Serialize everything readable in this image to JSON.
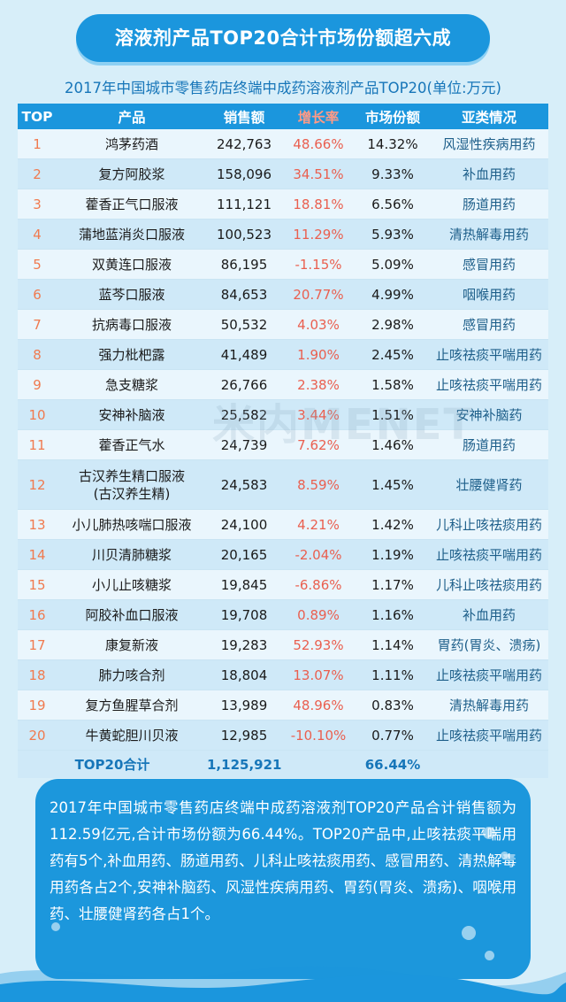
{
  "header": {
    "title": "溶液剂产品TOP20合计市场份额超六成",
    "subtitle": "2017年中国城市零售药店终端中成药溶液剂产品TOP20(单位:万元)"
  },
  "watermark": "米内MENET",
  "colors": {
    "accent": "#1b96dd",
    "negative_growth": "#ea5f4f",
    "rank": "#f07a4f"
  },
  "chart_data": {
    "type": "table",
    "columns": [
      "TOP",
      "产品",
      "销售额",
      "增长率",
      "市场份额",
      "亚类情况"
    ],
    "rows": [
      [
        "1",
        "鸿茅药酒",
        "242,763",
        "48.66%",
        "14.32%",
        "风湿性疾病用药"
      ],
      [
        "2",
        "复方阿胶浆",
        "158,096",
        "34.51%",
        "9.33%",
        "补血用药"
      ],
      [
        "3",
        "藿香正气口服液",
        "111,121",
        "18.81%",
        "6.56%",
        "肠道用药"
      ],
      [
        "4",
        "蒲地蓝消炎口服液",
        "100,523",
        "11.29%",
        "5.93%",
        "清热解毒用药"
      ],
      [
        "5",
        "双黄连口服液",
        "86,195",
        "-1.15%",
        "5.09%",
        "感冒用药"
      ],
      [
        "6",
        "蓝芩口服液",
        "84,653",
        "20.77%",
        "4.99%",
        "咽喉用药"
      ],
      [
        "7",
        "抗病毒口服液",
        "50,532",
        "4.03%",
        "2.98%",
        "感冒用药"
      ],
      [
        "8",
        "强力枇杷露",
        "41,489",
        "1.90%",
        "2.45%",
        "止咳祛痰平喘用药"
      ],
      [
        "9",
        "急支糖浆",
        "26,766",
        "2.38%",
        "1.58%",
        "止咳祛痰平喘用药"
      ],
      [
        "10",
        "安神补脑液",
        "25,582",
        "3.44%",
        "1.51%",
        "安神补脑药"
      ],
      [
        "11",
        "藿香正气水",
        "24,739",
        "7.62%",
        "1.46%",
        "肠道用药"
      ],
      [
        "12",
        "古汉养生精口服液\n(古汉养生精)",
        "24,583",
        "8.59%",
        "1.45%",
        "壮腰健肾药"
      ],
      [
        "13",
        "小儿肺热咳喘口服液",
        "24,100",
        "4.21%",
        "1.42%",
        "儿科止咳祛痰用药"
      ],
      [
        "14",
        "川贝清肺糖浆",
        "20,165",
        "-2.04%",
        "1.19%",
        "止咳祛痰平喘用药"
      ],
      [
        "15",
        "小儿止咳糖浆",
        "19,845",
        "-6.86%",
        "1.17%",
        "儿科止咳祛痰用药"
      ],
      [
        "16",
        "阿胶补血口服液",
        "19,708",
        "0.89%",
        "1.16%",
        "补血用药"
      ],
      [
        "17",
        "康复新液",
        "19,283",
        "52.93%",
        "1.14%",
        "胃药(胃炎、溃疡)"
      ],
      [
        "18",
        "肺力咳合剂",
        "18,804",
        "13.07%",
        "1.11%",
        "止咳祛痰平喘用药"
      ],
      [
        "19",
        "复方鱼腥草合剂",
        "13,989",
        "48.96%",
        "0.83%",
        "清热解毒用药"
      ],
      [
        "20",
        "牛黄蛇胆川贝液",
        "12,985",
        "-10.10%",
        "0.77%",
        "止咳祛痰平喘用药"
      ]
    ],
    "total": {
      "label": "TOP20合计",
      "sales": "1,125,921",
      "share": "66.44%"
    }
  },
  "summary": {
    "text": "2017年中国城市零售药店终端中成药溶液剂TOP20产品合计销售额为112.59亿元,合计市场份额为66.44%。TOP20产品中,止咳祛痰平喘用药有5个,补血用药、肠道用药、儿科止咳祛痰用药、感冒用药、清热解毒用药各占2个,安神补脑药、风湿性疾病用药、胃药(胃炎、溃疡)、咽喉用药、壮腰健肾药各占1个。"
  }
}
